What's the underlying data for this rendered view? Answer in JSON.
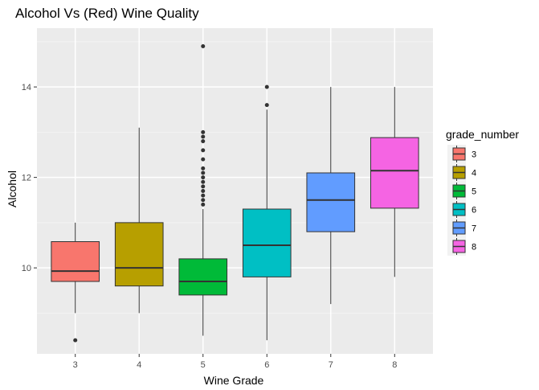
{
  "chart_data": {
    "type": "boxplot",
    "title": "Alcohol Vs (Red) Wine Quality",
    "xlabel": "Wine Grade",
    "ylabel": "Alcohol",
    "ylim": [
      8.1,
      15.3
    ],
    "yticks": [
      10,
      12,
      14
    ],
    "grid": true,
    "legend": {
      "title": "grade_number",
      "placement": "right"
    },
    "categories": [
      "3",
      "4",
      "5",
      "6",
      "7",
      "8"
    ],
    "series": [
      {
        "category": "3",
        "color": "#F8766D",
        "whisker_low": 9.0,
        "q1": 9.7,
        "median": 9.93,
        "q3": 10.58,
        "whisker_high": 11.0,
        "outliers": [
          8.4
        ]
      },
      {
        "category": "4",
        "color": "#B79F00",
        "whisker_low": 9.0,
        "q1": 9.6,
        "median": 10.0,
        "q3": 11.0,
        "whisker_high": 13.1,
        "outliers": []
      },
      {
        "category": "5",
        "color": "#00BA38",
        "whisker_low": 8.5,
        "q1": 9.4,
        "median": 9.7,
        "q3": 10.2,
        "whisker_high": 11.3,
        "outliers": [
          11.4,
          11.5,
          11.6,
          11.7,
          11.8,
          11.9,
          12.0,
          12.1,
          12.2,
          12.4,
          12.6,
          12.8,
          12.9,
          13.0,
          14.9
        ]
      },
      {
        "category": "6",
        "color": "#00BFC4",
        "whisker_low": 8.4,
        "q1": 9.8,
        "median": 10.5,
        "q3": 11.3,
        "whisker_high": 13.5,
        "outliers": [
          13.6,
          14.0
        ]
      },
      {
        "category": "7",
        "color": "#619CFF",
        "whisker_low": 9.2,
        "q1": 10.8,
        "median": 11.5,
        "q3": 12.1,
        "whisker_high": 14.0,
        "outliers": []
      },
      {
        "category": "8",
        "color": "#F564E3",
        "whisker_low": 9.8,
        "q1": 11.32,
        "median": 12.15,
        "q3": 12.88,
        "whisker_high": 14.0,
        "outliers": []
      }
    ]
  }
}
